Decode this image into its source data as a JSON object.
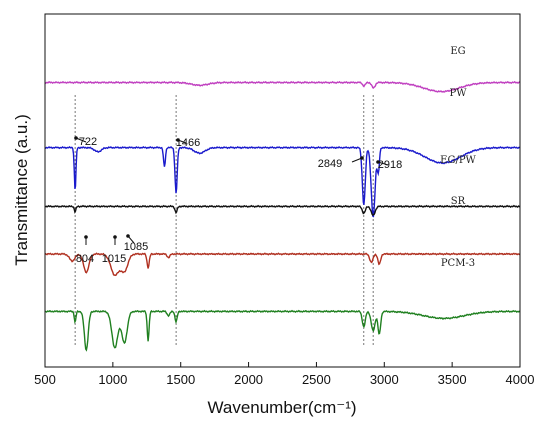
{
  "chart_data": {
    "type": "line",
    "xlabel": "Wavenumber(cm⁻¹)",
    "ylabel": "Transmittance (a.u.)",
    "xlim": [
      500,
      4000
    ],
    "x_ticks": [
      500,
      1000,
      1500,
      2000,
      2500,
      3000,
      3500,
      4000
    ],
    "y_ticks_shown": false,
    "series": [
      {
        "name": "EG",
        "color": "#c040c0",
        "offset": 4.55,
        "features": [
          {
            "x": 1640,
            "depth": 0.04,
            "width": 60
          },
          {
            "x": 2850,
            "depth": 0.05,
            "width": 10
          },
          {
            "x": 2920,
            "depth": 0.08,
            "width": 12
          },
          {
            "x": 3420,
            "depth": 0.13,
            "width": 130
          }
        ]
      },
      {
        "name": "PW",
        "color": "#1a1acc",
        "offset": 3.62,
        "features": [
          {
            "x": 722,
            "depth": 0.62,
            "width": 6
          },
          {
            "x": 890,
            "depth": 0.06,
            "width": 25
          },
          {
            "x": 1380,
            "depth": 0.28,
            "width": 7
          },
          {
            "x": 1466,
            "depth": 0.66,
            "width": 8
          },
          {
            "x": 1640,
            "depth": 0.08,
            "width": 40
          },
          {
            "x": 2849,
            "depth": 0.82,
            "width": 11
          },
          {
            "x": 2918,
            "depth": 1.0,
            "width": 14
          },
          {
            "x": 2956,
            "depth": 0.35,
            "width": 8
          },
          {
            "x": 3430,
            "depth": 0.22,
            "width": 130
          }
        ]
      },
      {
        "name": "EG/PW",
        "color": "#111111",
        "offset": 2.78,
        "features": [
          {
            "x": 722,
            "depth": 0.08,
            "width": 6
          },
          {
            "x": 1466,
            "depth": 0.09,
            "width": 8
          },
          {
            "x": 2849,
            "depth": 0.1,
            "width": 11
          },
          {
            "x": 2918,
            "depth": 0.13,
            "width": 14
          }
        ]
      },
      {
        "name": "SR",
        "color": "#b03020",
        "offset": 2.1,
        "features": [
          {
            "x": 700,
            "depth": 0.1,
            "width": 20
          },
          {
            "x": 804,
            "depth": 0.26,
            "width": 20
          },
          {
            "x": 1015,
            "depth": 0.3,
            "width": 30
          },
          {
            "x": 1085,
            "depth": 0.24,
            "width": 25
          },
          {
            "x": 1260,
            "depth": 0.2,
            "width": 8
          },
          {
            "x": 1410,
            "depth": 0.05,
            "width": 10
          },
          {
            "x": 2905,
            "depth": 0.12,
            "width": 12
          },
          {
            "x": 2963,
            "depth": 0.15,
            "width": 10
          }
        ]
      },
      {
        "name": "PCM-3",
        "color": "#208020",
        "offset": 1.28,
        "features": [
          {
            "x": 722,
            "depth": 0.16,
            "width": 6
          },
          {
            "x": 804,
            "depth": 0.55,
            "width": 14
          },
          {
            "x": 1015,
            "depth": 0.52,
            "width": 22
          },
          {
            "x": 1085,
            "depth": 0.45,
            "width": 20
          },
          {
            "x": 1260,
            "depth": 0.42,
            "width": 7
          },
          {
            "x": 1410,
            "depth": 0.06,
            "width": 10
          },
          {
            "x": 1466,
            "depth": 0.15,
            "width": 8
          },
          {
            "x": 2849,
            "depth": 0.22,
            "width": 11
          },
          {
            "x": 2918,
            "depth": 0.28,
            "width": 14
          },
          {
            "x": 2963,
            "depth": 0.33,
            "width": 10
          },
          {
            "x": 3440,
            "depth": 0.1,
            "width": 150
          }
        ]
      }
    ],
    "reference_lines": [
      722,
      1466,
      2849,
      2918
    ],
    "annotations": [
      {
        "text": "722",
        "x": 722
      },
      {
        "text": "1466",
        "x": 1466
      },
      {
        "text": "2849",
        "x": 2849
      },
      {
        "text": "2918",
        "x": 2918
      },
      {
        "text": "804",
        "x": 804
      },
      {
        "text": "1015",
        "x": 1015
      },
      {
        "text": "1085",
        "x": 1085
      }
    ]
  }
}
